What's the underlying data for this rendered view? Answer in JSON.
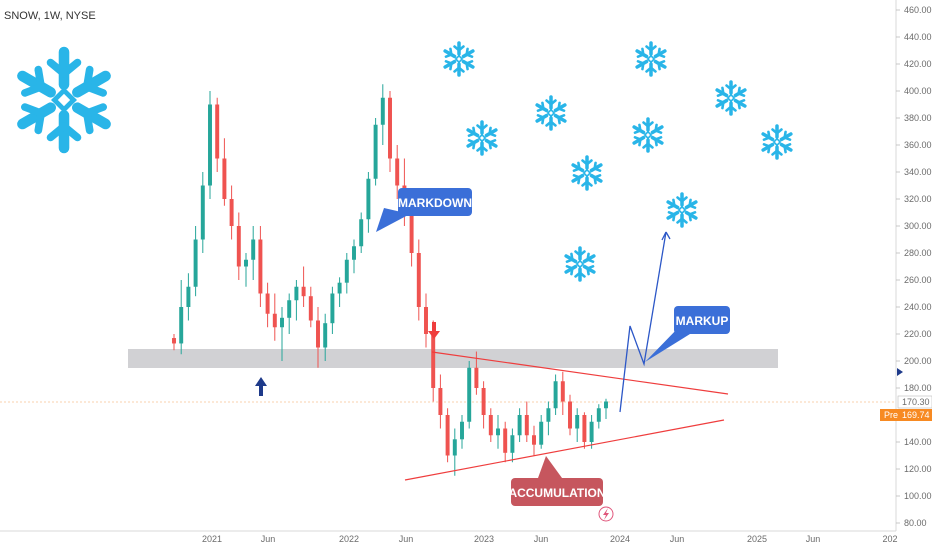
{
  "header": {
    "symbol_label": "SNOW, 1W, NYSE"
  },
  "chart_data": {
    "type": "candlestick",
    "title": "SNOW, 1W, NYSE",
    "x_tick_labels": [
      "2021",
      "Jun",
      "2022",
      "Jun",
      "2023",
      "Jun",
      "2024",
      "Jun",
      "2025",
      "Jun",
      "202"
    ],
    "y_tick_labels": [
      80,
      100,
      120,
      140,
      160,
      180,
      200,
      220,
      240,
      260,
      280,
      300,
      320,
      340,
      360,
      380,
      400,
      420,
      440,
      460
    ],
    "ylim": [
      80,
      460
    ],
    "price_label": "170.30",
    "pre_label": "Pre",
    "pre_price_label": "169.74",
    "annotations": [
      "MARKDOWN",
      "MARKUP",
      "ACCUMULATION"
    ],
    "support_zone": [
      197,
      211
    ],
    "triangle_upper": {
      "from": [
        4.95,
        207
      ],
      "to": [
        9.06,
        176
      ]
    },
    "triangle_lower": {
      "from": [
        4.38,
        113
      ],
      "to": [
        9.06,
        157
      ]
    },
    "projection": [
      [
        8.12,
        167
      ],
      [
        8.22,
        231
      ],
      [
        8.36,
        195
      ],
      [
        8.7,
        302
      ]
    ],
    "colors": {
      "up": "#26a69a",
      "down": "#ef5350",
      "accent": "#3f51b5",
      "brand": "#29b5e8",
      "zone": "#c9c9cd"
    },
    "series": [
      {
        "ohlc": [
          [
            217,
            220,
            208,
            213
          ],
          [
            213,
            260,
            205,
            240
          ],
          [
            240,
            265,
            230,
            255
          ],
          [
            255,
            300,
            248,
            290
          ],
          [
            290,
            340,
            280,
            330
          ],
          [
            330,
            400,
            320,
            390
          ],
          [
            390,
            395,
            340,
            350
          ],
          [
            350,
            365,
            315,
            320
          ],
          [
            320,
            330,
            290,
            300
          ],
          [
            300,
            310,
            260,
            270
          ],
          [
            270,
            280,
            255,
            275
          ],
          [
            275,
            300,
            260,
            290
          ],
          [
            290,
            300,
            240,
            250
          ],
          [
            250,
            258,
            225,
            235
          ],
          [
            235,
            250,
            215,
            225
          ],
          [
            225,
            240,
            200,
            232
          ],
          [
            232,
            250,
            220,
            245
          ],
          [
            245,
            260,
            230,
            255
          ],
          [
            255,
            270,
            240,
            248
          ],
          [
            248,
            255,
            225,
            230
          ],
          [
            230,
            240,
            195,
            210
          ],
          [
            210,
            235,
            200,
            228
          ],
          [
            228,
            255,
            220,
            250
          ],
          [
            250,
            262,
            240,
            258
          ],
          [
            258,
            280,
            250,
            275
          ],
          [
            275,
            290,
            265,
            285
          ],
          [
            285,
            310,
            280,
            305
          ],
          [
            305,
            340,
            295,
            335
          ],
          [
            335,
            380,
            330,
            375
          ],
          [
            375,
            405,
            360,
            395
          ],
          [
            395,
            400,
            340,
            350
          ],
          [
            350,
            360,
            320,
            330
          ],
          [
            330,
            350,
            300,
            310
          ],
          [
            310,
            320,
            270,
            280
          ],
          [
            280,
            290,
            230,
            240
          ],
          [
            240,
            250,
            210,
            220
          ],
          [
            220,
            230,
            170,
            180
          ],
          [
            180,
            190,
            150,
            160
          ],
          [
            160,
            165,
            125,
            130
          ],
          [
            130,
            150,
            115,
            142
          ],
          [
            142,
            160,
            135,
            155
          ],
          [
            155,
            200,
            150,
            195
          ],
          [
            195,
            207,
            175,
            180
          ],
          [
            180,
            185,
            150,
            160
          ],
          [
            160,
            165,
            140,
            145
          ],
          [
            145,
            160,
            135,
            150
          ],
          [
            150,
            155,
            125,
            132
          ],
          [
            132,
            150,
            125,
            145
          ],
          [
            145,
            165,
            140,
            160
          ],
          [
            160,
            170,
            140,
            145
          ],
          [
            145,
            152,
            130,
            138
          ],
          [
            138,
            160,
            135,
            155
          ],
          [
            155,
            170,
            145,
            165
          ],
          [
            165,
            190,
            160,
            185
          ],
          [
            185,
            192,
            160,
            170
          ],
          [
            170,
            175,
            145,
            150
          ],
          [
            150,
            165,
            140,
            160
          ],
          [
            160,
            162,
            135,
            140
          ],
          [
            140,
            160,
            135,
            155
          ],
          [
            155,
            168,
            150,
            165
          ],
          [
            165,
            172,
            157,
            170
          ]
        ]
      }
    ]
  }
}
